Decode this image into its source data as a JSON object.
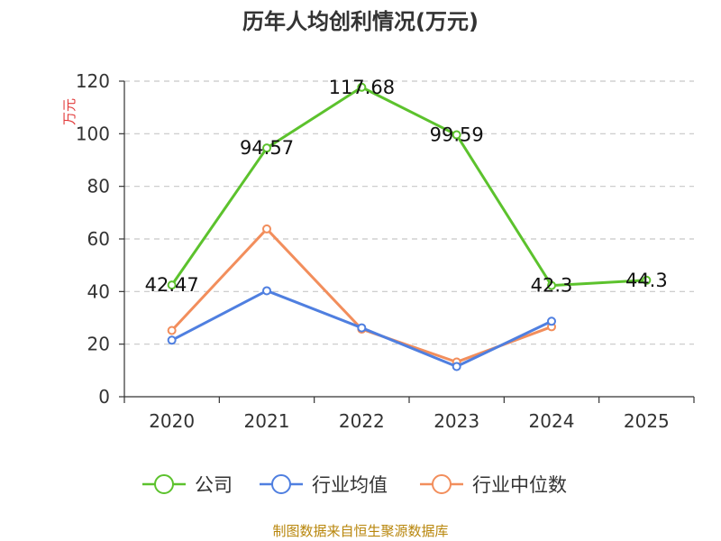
{
  "chart_data": {
    "type": "line",
    "title": "历年人均创利情况(万元)",
    "ylabel": "万元",
    "xlabel": "",
    "ylim": [
      0,
      120
    ],
    "yticks": [
      0,
      20,
      40,
      60,
      80,
      100,
      120
    ],
    "categories": [
      "2020",
      "2021",
      "2022",
      "2023",
      "2024",
      "2025"
    ],
    "grid": true,
    "legend_position": "bottom",
    "series": [
      {
        "name": "公司",
        "color": "#5cc22d",
        "values": [
          42.47,
          94.57,
          117.68,
          99.59,
          42.3,
          44.3
        ],
        "labels": [
          "42.47",
          "94.57",
          "117.68",
          "99.59",
          "42.3",
          "44.3"
        ]
      },
      {
        "name": "行业均值",
        "color": "#4f7fe0",
        "values": [
          21.5,
          40.3,
          26.2,
          11.5,
          28.7,
          null
        ]
      },
      {
        "name": "行业中位数",
        "color": "#f28e5c",
        "values": [
          25.2,
          63.8,
          25.7,
          13.2,
          26.6,
          null
        ]
      }
    ],
    "source": "制图数据来自恒生聚源数据库"
  }
}
